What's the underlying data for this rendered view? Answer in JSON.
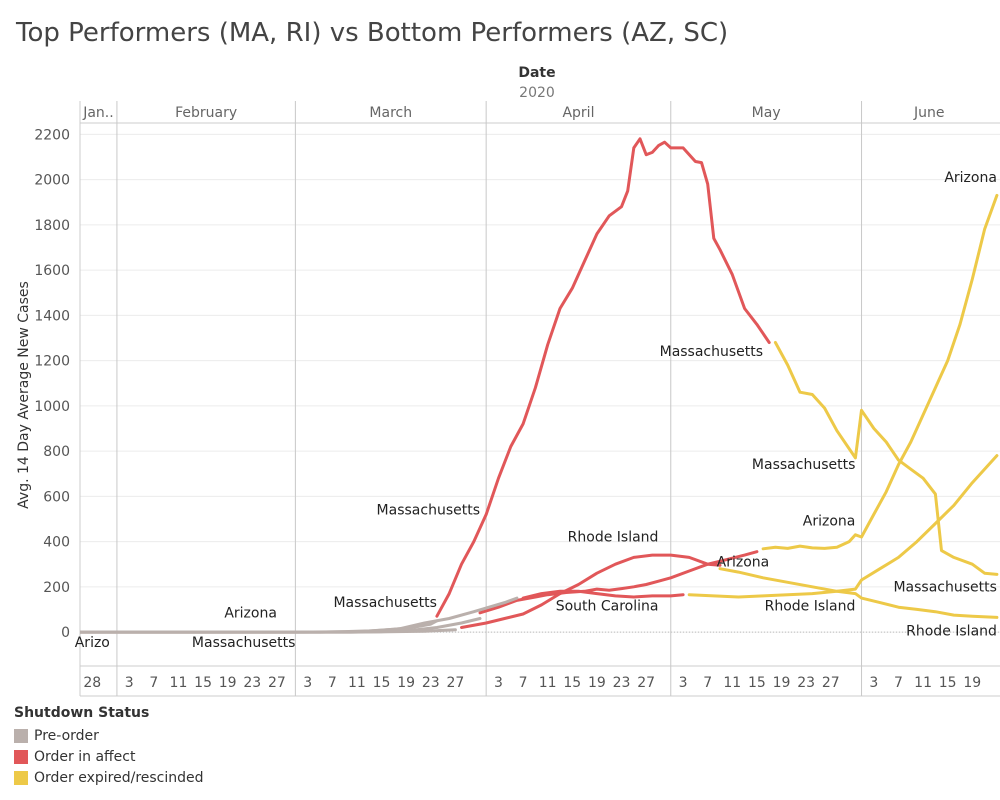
{
  "title": "Top Performers (MA, RI) vs Bottom Performers (AZ, SC)",
  "chart_data": {
    "type": "line",
    "title": "Top Performers (MA, RI) vs Bottom Performers (AZ, SC)",
    "x_header": "Date",
    "x_subheader": "2020",
    "ylabel": "Avg. 14 Day Average New Cases",
    "ylim": [
      -150,
      2250
    ],
    "yticks": [
      0,
      200,
      400,
      600,
      800,
      1000,
      1200,
      1400,
      1600,
      1800,
      2000,
      2200
    ],
    "months": [
      {
        "label": "Jan..",
        "start": "2020-01-26",
        "end": "2020-02-01"
      },
      {
        "label": "February",
        "start": "2020-02-01",
        "end": "2020-03-01"
      },
      {
        "label": "March",
        "start": "2020-03-01",
        "end": "2020-04-01"
      },
      {
        "label": "April",
        "start": "2020-04-01",
        "end": "2020-05-01"
      },
      {
        "label": "May",
        "start": "2020-05-01",
        "end": "2020-06-01"
      },
      {
        "label": "June",
        "start": "2020-06-01",
        "end": "2020-06-23"
      }
    ],
    "day_ticks": [
      {
        "date": "2020-01-28",
        "label": "28"
      },
      {
        "date": "2020-02-03",
        "label": "3"
      },
      {
        "date": "2020-02-07",
        "label": "7"
      },
      {
        "date": "2020-02-11",
        "label": "11"
      },
      {
        "date": "2020-02-15",
        "label": "15"
      },
      {
        "date": "2020-02-19",
        "label": "19"
      },
      {
        "date": "2020-02-23",
        "label": "23"
      },
      {
        "date": "2020-02-27",
        "label": "27"
      },
      {
        "date": "2020-03-03",
        "label": "3"
      },
      {
        "date": "2020-03-07",
        "label": "7"
      },
      {
        "date": "2020-03-11",
        "label": "11"
      },
      {
        "date": "2020-03-15",
        "label": "15"
      },
      {
        "date": "2020-03-19",
        "label": "19"
      },
      {
        "date": "2020-03-23",
        "label": "23"
      },
      {
        "date": "2020-03-27",
        "label": "27"
      },
      {
        "date": "2020-04-03",
        "label": "3"
      },
      {
        "date": "2020-04-07",
        "label": "7"
      },
      {
        "date": "2020-04-11",
        "label": "11"
      },
      {
        "date": "2020-04-15",
        "label": "15"
      },
      {
        "date": "2020-04-19",
        "label": "19"
      },
      {
        "date": "2020-04-23",
        "label": "23"
      },
      {
        "date": "2020-04-27",
        "label": "27"
      },
      {
        "date": "2020-05-03",
        "label": "3"
      },
      {
        "date": "2020-05-07",
        "label": "7"
      },
      {
        "date": "2020-05-11",
        "label": "11"
      },
      {
        "date": "2020-05-15",
        "label": "15"
      },
      {
        "date": "2020-05-19",
        "label": "19"
      },
      {
        "date": "2020-05-23",
        "label": "23"
      },
      {
        "date": "2020-05-27",
        "label": "27"
      },
      {
        "date": "2020-06-03",
        "label": "3"
      },
      {
        "date": "2020-06-07",
        "label": "7"
      },
      {
        "date": "2020-06-11",
        "label": "11"
      },
      {
        "date": "2020-06-15",
        "label": "15"
      },
      {
        "date": "2020-06-19",
        "label": "19"
      }
    ],
    "colors": {
      "Pre-order": "#bab0ac",
      "Order in affect": "#e15759",
      "Order expired/rescinded": "#edc948"
    },
    "series": [
      {
        "name": "Arizona",
        "status": "Pre-order",
        "points": [
          [
            "2020-01-26",
            0
          ],
          [
            "2020-01-30",
            0
          ],
          [
            "2020-02-01",
            0
          ],
          [
            "2020-02-15",
            0
          ],
          [
            "2020-03-01",
            0
          ],
          [
            "2020-03-10",
            0
          ],
          [
            "2020-03-15",
            2
          ],
          [
            "2020-03-20",
            8
          ],
          [
            "2020-03-24",
            20
          ],
          [
            "2020-03-28",
            40
          ],
          [
            "2020-03-31",
            60
          ]
        ]
      },
      {
        "name": "Arizona",
        "status": "Order in affect",
        "points": [
          [
            "2020-03-31",
            85
          ],
          [
            "2020-04-03",
            110
          ],
          [
            "2020-04-06",
            140
          ],
          [
            "2020-04-09",
            155
          ],
          [
            "2020-04-11",
            165
          ],
          [
            "2020-04-14",
            175
          ],
          [
            "2020-04-17",
            180
          ],
          [
            "2020-04-19",
            190
          ],
          [
            "2020-04-21",
            185
          ],
          [
            "2020-04-23",
            192
          ],
          [
            "2020-04-25",
            200
          ],
          [
            "2020-04-27",
            210
          ],
          [
            "2020-04-29",
            225
          ],
          [
            "2020-05-01",
            240
          ],
          [
            "2020-05-04",
            270
          ],
          [
            "2020-05-07",
            300
          ],
          [
            "2020-05-10",
            320
          ],
          [
            "2020-05-13",
            340
          ],
          [
            "2020-05-15",
            355
          ]
        ]
      },
      {
        "name": "Arizona",
        "status": "Order expired/rescinded",
        "points": [
          [
            "2020-05-16",
            368
          ],
          [
            "2020-05-18",
            375
          ],
          [
            "2020-05-20",
            370
          ],
          [
            "2020-05-22",
            380
          ],
          [
            "2020-05-24",
            372
          ],
          [
            "2020-05-26",
            370
          ],
          [
            "2020-05-28",
            375
          ],
          [
            "2020-05-30",
            400
          ],
          [
            "2020-05-31",
            430
          ],
          [
            "2020-06-01",
            420
          ],
          [
            "2020-06-03",
            520
          ],
          [
            "2020-06-05",
            620
          ],
          [
            "2020-06-07",
            740
          ],
          [
            "2020-06-09",
            840
          ],
          [
            "2020-06-11",
            960
          ],
          [
            "2020-06-13",
            1080
          ],
          [
            "2020-06-15",
            1200
          ],
          [
            "2020-06-17",
            1360
          ],
          [
            "2020-06-19",
            1560
          ],
          [
            "2020-06-21",
            1780
          ],
          [
            "2020-06-23",
            1930
          ]
        ]
      },
      {
        "name": "Massachusetts",
        "status": "Pre-order",
        "points": [
          [
            "2020-01-26",
            0
          ],
          [
            "2020-02-01",
            0
          ],
          [
            "2020-02-15",
            0
          ],
          [
            "2020-03-01",
            0
          ],
          [
            "2020-03-05",
            0
          ],
          [
            "2020-03-09",
            2
          ],
          [
            "2020-03-13",
            5
          ],
          [
            "2020-03-17",
            12
          ],
          [
            "2020-03-20",
            20
          ],
          [
            "2020-03-23",
            35
          ],
          [
            "2020-03-24",
            50
          ]
        ]
      },
      {
        "name": "Massachusetts",
        "status": "Order in affect",
        "points": [
          [
            "2020-03-24",
            70
          ],
          [
            "2020-03-26",
            170
          ],
          [
            "2020-03-28",
            300
          ],
          [
            "2020-03-30",
            400
          ],
          [
            "2020-04-01",
            520
          ],
          [
            "2020-04-03",
            680
          ],
          [
            "2020-04-05",
            820
          ],
          [
            "2020-04-07",
            920
          ],
          [
            "2020-04-09",
            1080
          ],
          [
            "2020-04-11",
            1270
          ],
          [
            "2020-04-13",
            1430
          ],
          [
            "2020-04-15",
            1520
          ],
          [
            "2020-04-17",
            1640
          ],
          [
            "2020-04-19",
            1760
          ],
          [
            "2020-04-21",
            1840
          ],
          [
            "2020-04-23",
            1880
          ],
          [
            "2020-04-24",
            1950
          ],
          [
            "2020-04-25",
            2140
          ],
          [
            "2020-04-26",
            2180
          ],
          [
            "2020-04-27",
            2110
          ],
          [
            "2020-04-28",
            2120
          ],
          [
            "2020-04-29",
            2150
          ],
          [
            "2020-04-30",
            2165
          ],
          [
            "2020-05-01",
            2140
          ],
          [
            "2020-05-03",
            2140
          ],
          [
            "2020-05-05",
            2080
          ],
          [
            "2020-05-06",
            2075
          ],
          [
            "2020-05-07",
            1980
          ],
          [
            "2020-05-08",
            1740
          ],
          [
            "2020-05-09",
            1690
          ],
          [
            "2020-05-11",
            1580
          ],
          [
            "2020-05-13",
            1430
          ],
          [
            "2020-05-15",
            1360
          ],
          [
            "2020-05-17",
            1280
          ]
        ]
      },
      {
        "name": "Massachusetts",
        "status": "Order expired/rescinded",
        "points": [
          [
            "2020-05-18",
            1280
          ],
          [
            "2020-05-20",
            1180
          ],
          [
            "2020-05-22",
            1060
          ],
          [
            "2020-05-24",
            1050
          ],
          [
            "2020-05-26",
            990
          ],
          [
            "2020-05-28",
            890
          ],
          [
            "2020-05-31",
            770
          ],
          [
            "2020-06-01",
            980
          ],
          [
            "2020-06-03",
            900
          ],
          [
            "2020-06-05",
            840
          ],
          [
            "2020-06-07",
            760
          ],
          [
            "2020-06-09",
            720
          ],
          [
            "2020-06-11",
            680
          ],
          [
            "2020-06-13",
            610
          ],
          [
            "2020-06-14",
            360
          ],
          [
            "2020-06-16",
            330
          ],
          [
            "2020-06-19",
            300
          ],
          [
            "2020-06-21",
            260
          ],
          [
            "2020-06-23",
            255
          ]
        ]
      },
      {
        "name": "Rhode Island",
        "status": "Pre-order",
        "points": [
          [
            "2020-01-26",
            0
          ],
          [
            "2020-02-01",
            0
          ],
          [
            "2020-03-01",
            0
          ],
          [
            "2020-03-10",
            0
          ],
          [
            "2020-03-16",
            1
          ],
          [
            "2020-03-22",
            4
          ],
          [
            "2020-03-27",
            10
          ]
        ]
      },
      {
        "name": "Rhode Island",
        "status": "Order in affect",
        "points": [
          [
            "2020-03-28",
            20
          ],
          [
            "2020-04-01",
            40
          ],
          [
            "2020-04-04",
            60
          ],
          [
            "2020-04-07",
            80
          ],
          [
            "2020-04-10",
            120
          ],
          [
            "2020-04-13",
            170
          ],
          [
            "2020-04-16",
            210
          ],
          [
            "2020-04-19",
            260
          ],
          [
            "2020-04-22",
            300
          ],
          [
            "2020-04-25",
            330
          ],
          [
            "2020-04-28",
            340
          ],
          [
            "2020-05-01",
            340
          ],
          [
            "2020-05-04",
            330
          ],
          [
            "2020-05-07",
            300
          ],
          [
            "2020-05-09",
            295
          ]
        ]
      },
      {
        "name": "Rhode Island",
        "status": "Order expired/rescinded",
        "points": [
          [
            "2020-05-09",
            280
          ],
          [
            "2020-05-12",
            265
          ],
          [
            "2020-05-16",
            240
          ],
          [
            "2020-05-20",
            220
          ],
          [
            "2020-05-24",
            200
          ],
          [
            "2020-05-28",
            180
          ],
          [
            "2020-05-31",
            170
          ],
          [
            "2020-06-01",
            150
          ],
          [
            "2020-06-04",
            130
          ],
          [
            "2020-06-07",
            110
          ],
          [
            "2020-06-10",
            100
          ],
          [
            "2020-06-13",
            90
          ],
          [
            "2020-06-16",
            75
          ],
          [
            "2020-06-19",
            70
          ],
          [
            "2020-06-23",
            65
          ]
        ]
      },
      {
        "name": "South Carolina",
        "status": "Pre-order",
        "points": [
          [
            "2020-01-26",
            0
          ],
          [
            "2020-02-01",
            0
          ],
          [
            "2020-03-01",
            0
          ],
          [
            "2020-03-12",
            2
          ],
          [
            "2020-03-18",
            15
          ],
          [
            "2020-03-22",
            40
          ],
          [
            "2020-03-26",
            60
          ],
          [
            "2020-03-30",
            90
          ],
          [
            "2020-04-04",
            130
          ],
          [
            "2020-04-06",
            150
          ]
        ]
      },
      {
        "name": "South Carolina",
        "status": "Order in affect",
        "points": [
          [
            "2020-04-07",
            150
          ],
          [
            "2020-04-10",
            170
          ],
          [
            "2020-04-13",
            180
          ],
          [
            "2020-04-16",
            180
          ],
          [
            "2020-04-19",
            170
          ],
          [
            "2020-04-22",
            160
          ],
          [
            "2020-04-25",
            155
          ],
          [
            "2020-04-28",
            160
          ],
          [
            "2020-05-01",
            160
          ],
          [
            "2020-05-03",
            165
          ]
        ]
      },
      {
        "name": "South Carolina",
        "status": "Order expired/rescinded",
        "points": [
          [
            "2020-05-04",
            165
          ],
          [
            "2020-05-08",
            160
          ],
          [
            "2020-05-12",
            155
          ],
          [
            "2020-05-16",
            160
          ],
          [
            "2020-05-20",
            165
          ],
          [
            "2020-05-24",
            170
          ],
          [
            "2020-05-28",
            180
          ],
          [
            "2020-05-31",
            190
          ],
          [
            "2020-06-01",
            230
          ],
          [
            "2020-06-04",
            280
          ],
          [
            "2020-06-07",
            330
          ],
          [
            "2020-06-10",
            400
          ],
          [
            "2020-06-13",
            480
          ],
          [
            "2020-06-16",
            560
          ],
          [
            "2020-06-19",
            660
          ],
          [
            "2020-06-23",
            780
          ]
        ]
      }
    ],
    "annotations": [
      {
        "text": "Arizo",
        "date": "2020-01-28",
        "value": -65,
        "anchor": "middle"
      },
      {
        "text": "Arizona",
        "date": "2020-02-27",
        "value": 65,
        "anchor": "end"
      },
      {
        "text": "Massachusetts",
        "date": "2020-03-01",
        "value": -65,
        "anchor": "end"
      },
      {
        "text": "Massachusetts",
        "date": "2020-03-24",
        "value": 110,
        "anchor": "end"
      },
      {
        "text": "Massachusetts",
        "date": "2020-03-31",
        "value": 520,
        "anchor": "end"
      },
      {
        "text": "Rhode Island",
        "date": "2020-04-29",
        "value": 400,
        "anchor": "end"
      },
      {
        "text": "South Carolina",
        "date": "2020-04-29",
        "value": 95,
        "anchor": "end"
      },
      {
        "text": "Massachusetts",
        "date": "2020-05-16",
        "value": 1220,
        "anchor": "end"
      },
      {
        "text": "Arizona",
        "date": "2020-05-17",
        "value": 290,
        "anchor": "end"
      },
      {
        "text": "Massachusetts",
        "date": "2020-05-31",
        "value": 720,
        "anchor": "end"
      },
      {
        "text": "Arizona",
        "date": "2020-05-31",
        "value": 470,
        "anchor": "end"
      },
      {
        "text": "Rhode Island",
        "date": "2020-05-31",
        "value": 95,
        "anchor": "end"
      },
      {
        "text": "Arizona",
        "date": "2020-06-23",
        "value": 1990,
        "anchor": "end"
      },
      {
        "text": "Massachusetts",
        "date": "2020-06-23",
        "value": 180,
        "anchor": "end"
      },
      {
        "text": "Rhode Island",
        "date": "2020-06-23",
        "value": -15,
        "anchor": "end"
      }
    ]
  },
  "legend": {
    "title": "Shutdown Status",
    "items": [
      {
        "label": "Pre-order",
        "color": "#bab0ac"
      },
      {
        "label": "Order in affect",
        "color": "#e15759"
      },
      {
        "label": "Order expired/rescinded",
        "color": "#edc948"
      }
    ]
  }
}
